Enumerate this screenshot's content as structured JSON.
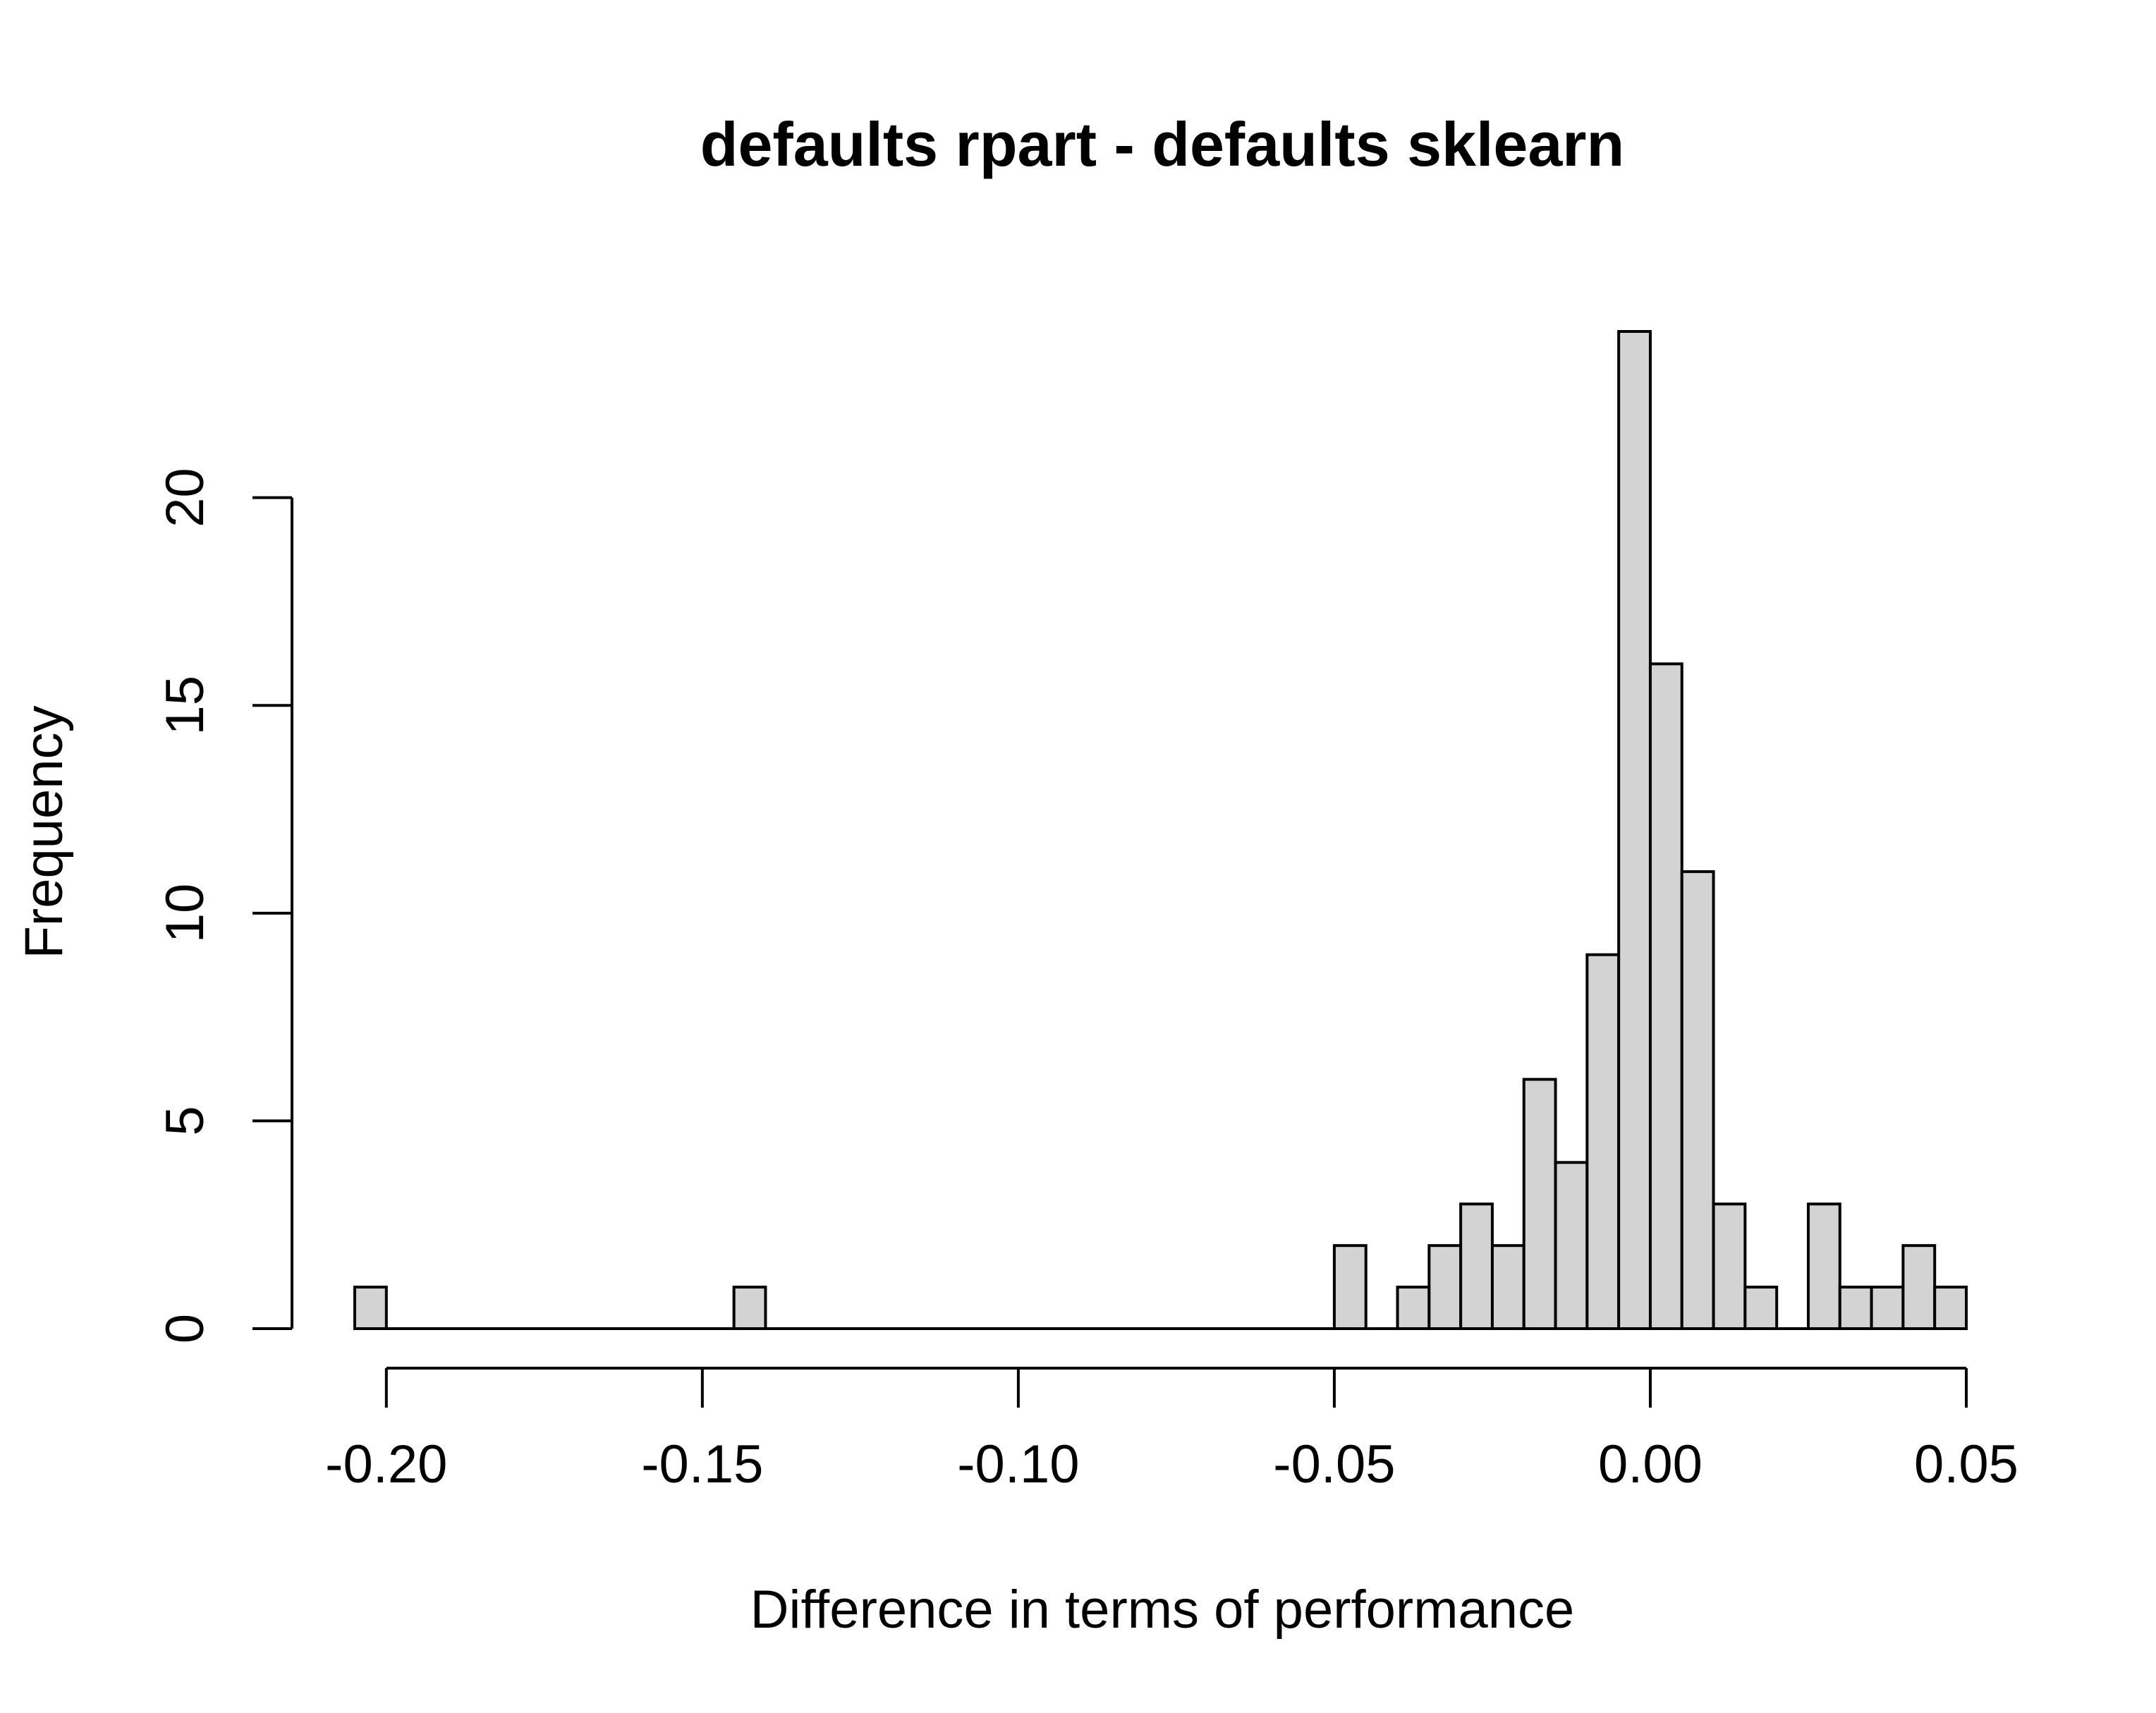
{
  "chart_data": {
    "type": "bar",
    "title": "defaults rpart - defaults sklearn",
    "xlabel": "Difference in terms of performance",
    "ylabel": "Frequency",
    "bin_width": 0.005,
    "xlim": [
      -0.205,
      0.05
    ],
    "ylim": [
      0,
      24
    ],
    "x_ticks": [
      {
        "value": -0.2,
        "label": "-0.20"
      },
      {
        "value": -0.15,
        "label": "-0.15"
      },
      {
        "value": -0.1,
        "label": "-0.10"
      },
      {
        "value": -0.05,
        "label": "-0.05"
      },
      {
        "value": 0.0,
        "label": "0.00"
      },
      {
        "value": 0.05,
        "label": "0.05"
      }
    ],
    "y_ticks": [
      {
        "value": 0,
        "label": "0"
      },
      {
        "value": 5,
        "label": "5"
      },
      {
        "value": 10,
        "label": "10"
      },
      {
        "value": 15,
        "label": "15"
      },
      {
        "value": 20,
        "label": "20"
      }
    ],
    "bar_color": "#d3d3d3",
    "bins": [
      {
        "start": -0.205,
        "count": 1
      },
      {
        "start": -0.145,
        "count": 1
      },
      {
        "start": -0.05,
        "count": 2
      },
      {
        "start": -0.04,
        "count": 1
      },
      {
        "start": -0.035,
        "count": 2
      },
      {
        "start": -0.03,
        "count": 3
      },
      {
        "start": -0.025,
        "count": 2
      },
      {
        "start": -0.02,
        "count": 6
      },
      {
        "start": -0.015,
        "count": 4
      },
      {
        "start": -0.01,
        "count": 9
      },
      {
        "start": -0.005,
        "count": 24
      },
      {
        "start": 0.0,
        "count": 16
      },
      {
        "start": 0.005,
        "count": 11
      },
      {
        "start": 0.01,
        "count": 3
      },
      {
        "start": 0.015,
        "count": 1
      },
      {
        "start": 0.025,
        "count": 3
      },
      {
        "start": 0.03,
        "count": 1
      },
      {
        "start": 0.035,
        "count": 1
      },
      {
        "start": 0.04,
        "count": 2
      },
      {
        "start": 0.045,
        "count": 1
      }
    ]
  }
}
